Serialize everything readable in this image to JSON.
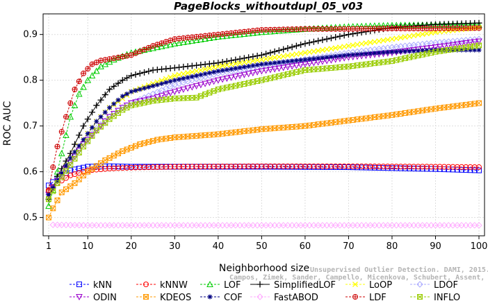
{
  "chart_data": {
    "type": "line",
    "title": "PageBlocks_withoutdupl_05_v03",
    "xlabel": "Neighborhood size",
    "ylabel": "ROC AUC",
    "xlim": [
      1,
      100
    ],
    "ylim": [
      0.46,
      0.945
    ],
    "xticks": [
      "1",
      "10",
      "20",
      "30",
      "40",
      "50",
      "60",
      "70",
      "80",
      "90",
      "100"
    ],
    "yticks": [
      "0.5",
      "0.6",
      "0.7",
      "0.8",
      "0.9"
    ],
    "grid": true,
    "legend_position": "bottom",
    "credit_line1": "Unsupervised Outlier Detection. DAMI, 2015.",
    "credit_line2": "Campos, Zimek, Sander, Campello, Micenkova, Schubert, Assent, Houle",
    "series": [
      {
        "name": "kNN",
        "color": "#0000ff",
        "marker": "square",
        "points": [
          [
            1,
            0.57
          ],
          [
            3,
            0.585
          ],
          [
            6,
            0.603
          ],
          [
            10,
            0.611
          ],
          [
            15,
            0.612
          ],
          [
            20,
            0.611
          ],
          [
            30,
            0.611
          ],
          [
            50,
            0.611
          ],
          [
            70,
            0.61
          ],
          [
            90,
            0.606
          ],
          [
            100,
            0.603
          ]
        ]
      },
      {
        "name": "kNNW",
        "color": "#ff0000",
        "marker": "circle",
        "points": [
          [
            1,
            0.558
          ],
          [
            3,
            0.575
          ],
          [
            6,
            0.592
          ],
          [
            10,
            0.603
          ],
          [
            15,
            0.607
          ],
          [
            20,
            0.609
          ],
          [
            30,
            0.611
          ],
          [
            50,
            0.612
          ],
          [
            70,
            0.612
          ],
          [
            90,
            0.611
          ],
          [
            100,
            0.61
          ]
        ]
      },
      {
        "name": "LOF",
        "color": "#00cc00",
        "marker": "triangle",
        "points": [
          [
            1,
            0.525
          ],
          [
            2,
            0.56
          ],
          [
            4,
            0.64
          ],
          [
            6,
            0.72
          ],
          [
            8,
            0.77
          ],
          [
            10,
            0.8
          ],
          [
            13,
            0.83
          ],
          [
            16,
            0.845
          ],
          [
            20,
            0.86
          ],
          [
            30,
            0.88
          ],
          [
            40,
            0.895
          ],
          [
            50,
            0.905
          ],
          [
            60,
            0.912
          ],
          [
            70,
            0.917
          ],
          [
            80,
            0.92
          ],
          [
            90,
            0.921
          ],
          [
            100,
            0.921
          ]
        ]
      },
      {
        "name": "SimplifiedLOF",
        "color": "#000000",
        "marker": "plus",
        "points": [
          [
            1,
            0.54
          ],
          [
            3,
            0.59
          ],
          [
            6,
            0.64
          ],
          [
            9,
            0.7
          ],
          [
            12,
            0.745
          ],
          [
            15,
            0.78
          ],
          [
            18,
            0.8
          ],
          [
            20,
            0.81
          ],
          [
            25,
            0.822
          ],
          [
            30,
            0.827
          ],
          [
            40,
            0.838
          ],
          [
            50,
            0.855
          ],
          [
            60,
            0.88
          ],
          [
            70,
            0.9
          ],
          [
            80,
            0.915
          ],
          [
            90,
            0.922
          ],
          [
            100,
            0.925
          ]
        ]
      },
      {
        "name": "LoOP",
        "color": "#ffff00",
        "marker": "x",
        "points": [
          [
            1,
            0.55
          ],
          [
            3,
            0.58
          ],
          [
            6,
            0.63
          ],
          [
            9,
            0.67
          ],
          [
            12,
            0.71
          ],
          [
            15,
            0.74
          ],
          [
            18,
            0.76
          ],
          [
            20,
            0.775
          ],
          [
            30,
            0.81
          ],
          [
            40,
            0.83
          ],
          [
            50,
            0.845
          ],
          [
            60,
            0.86
          ],
          [
            70,
            0.875
          ],
          [
            80,
            0.89
          ],
          [
            90,
            0.905
          ],
          [
            100,
            0.915
          ]
        ]
      },
      {
        "name": "LDOF",
        "color": "#aaaaff",
        "marker": "diamond",
        "points": [
          [
            1,
            0.55
          ],
          [
            3,
            0.58
          ],
          [
            6,
            0.62
          ],
          [
            9,
            0.66
          ],
          [
            12,
            0.695
          ],
          [
            15,
            0.72
          ],
          [
            18,
            0.74
          ],
          [
            20,
            0.75
          ],
          [
            30,
            0.79
          ],
          [
            40,
            0.815
          ],
          [
            50,
            0.83
          ],
          [
            60,
            0.845
          ],
          [
            70,
            0.86
          ],
          [
            80,
            0.872
          ],
          [
            90,
            0.882
          ],
          [
            100,
            0.89
          ]
        ]
      },
      {
        "name": "ODIN",
        "color": "#9900cc",
        "marker": "triangle-down",
        "points": [
          [
            1,
            0.55
          ],
          [
            3,
            0.58
          ],
          [
            6,
            0.62
          ],
          [
            9,
            0.66
          ],
          [
            12,
            0.69
          ],
          [
            15,
            0.72
          ],
          [
            18,
            0.74
          ],
          [
            20,
            0.75
          ],
          [
            25,
            0.76
          ],
          [
            30,
            0.775
          ],
          [
            40,
            0.8
          ],
          [
            50,
            0.82
          ],
          [
            60,
            0.835
          ],
          [
            70,
            0.85
          ],
          [
            80,
            0.86
          ],
          [
            90,
            0.872
          ],
          [
            100,
            0.885
          ]
        ]
      },
      {
        "name": "KDEOS",
        "color": "#ff9900",
        "marker": "square-x",
        "points": [
          [
            1,
            0.5
          ],
          [
            2,
            0.52
          ],
          [
            4,
            0.555
          ],
          [
            7,
            0.575
          ],
          [
            10,
            0.6
          ],
          [
            14,
            0.625
          ],
          [
            18,
            0.645
          ],
          [
            22,
            0.66
          ],
          [
            26,
            0.67
          ],
          [
            30,
            0.675
          ],
          [
            40,
            0.682
          ],
          [
            50,
            0.693
          ],
          [
            60,
            0.7
          ],
          [
            70,
            0.712
          ],
          [
            80,
            0.724
          ],
          [
            90,
            0.738
          ],
          [
            100,
            0.75
          ]
        ]
      },
      {
        "name": "COF",
        "color": "#000080",
        "marker": "asterisk",
        "points": [
          [
            1,
            0.55
          ],
          [
            3,
            0.58
          ],
          [
            6,
            0.63
          ],
          [
            9,
            0.67
          ],
          [
            12,
            0.71
          ],
          [
            15,
            0.74
          ],
          [
            18,
            0.765
          ],
          [
            20,
            0.775
          ],
          [
            30,
            0.8
          ],
          [
            40,
            0.82
          ],
          [
            50,
            0.835
          ],
          [
            60,
            0.845
          ],
          [
            70,
            0.855
          ],
          [
            80,
            0.862
          ],
          [
            90,
            0.866
          ],
          [
            100,
            0.866
          ]
        ]
      },
      {
        "name": "FastABOD",
        "color": "#ffaaff",
        "marker": "diamond",
        "points": [
          [
            2,
            0.484
          ],
          [
            10,
            0.483
          ],
          [
            20,
            0.483
          ],
          [
            40,
            0.483
          ],
          [
            60,
            0.483
          ],
          [
            80,
            0.483
          ],
          [
            100,
            0.483
          ]
        ]
      },
      {
        "name": "LDF",
        "color": "#cc0000",
        "marker": "circle-plus",
        "points": [
          [
            1,
            0.56
          ],
          [
            2,
            0.61
          ],
          [
            3,
            0.655
          ],
          [
            5,
            0.72
          ],
          [
            7,
            0.78
          ],
          [
            9,
            0.815
          ],
          [
            11,
            0.835
          ],
          [
            13,
            0.843
          ],
          [
            16,
            0.848
          ],
          [
            20,
            0.855
          ],
          [
            25,
            0.875
          ],
          [
            30,
            0.89
          ],
          [
            40,
            0.9
          ],
          [
            50,
            0.91
          ],
          [
            60,
            0.912
          ],
          [
            70,
            0.912
          ],
          [
            80,
            0.913
          ],
          [
            90,
            0.913
          ],
          [
            100,
            0.914
          ]
        ]
      },
      {
        "name": "INFLO",
        "color": "#99cc00",
        "marker": "square-x",
        "points": [
          [
            1,
            0.54
          ],
          [
            3,
            0.575
          ],
          [
            6,
            0.615
          ],
          [
            9,
            0.655
          ],
          [
            12,
            0.69
          ],
          [
            15,
            0.715
          ],
          [
            18,
            0.735
          ],
          [
            20,
            0.745
          ],
          [
            25,
            0.755
          ],
          [
            30,
            0.76
          ],
          [
            35,
            0.762
          ],
          [
            40,
            0.78
          ],
          [
            50,
            0.8
          ],
          [
            60,
            0.822
          ],
          [
            70,
            0.83
          ],
          [
            80,
            0.842
          ],
          [
            90,
            0.862
          ],
          [
            100,
            0.876
          ]
        ]
      }
    ]
  }
}
